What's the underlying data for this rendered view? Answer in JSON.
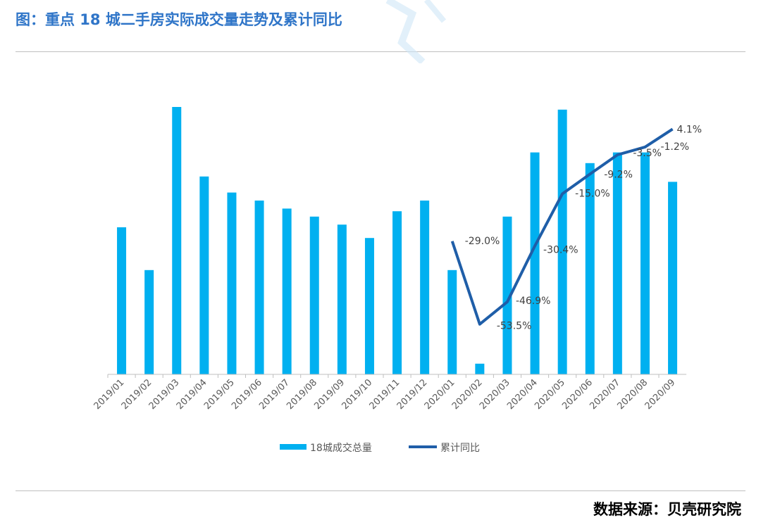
{
  "header": {
    "title": "图：重点 18 城二手房实际成交量走势及累计同比"
  },
  "footer": {
    "source": "数据来源：贝壳研究院"
  },
  "colors": {
    "bar": "#00b0f0",
    "line": "#1f5ea8",
    "title": "#2f75c8"
  },
  "chart_data": {
    "type": "bar+line",
    "categories": [
      "2019/01",
      "2019/02",
      "2019/03",
      "2019/04",
      "2019/05",
      "2019/06",
      "2019/07",
      "2019/08",
      "2019/09",
      "2019/10",
      "2019/11",
      "2019/12",
      "2020/01",
      "2020/02",
      "2020/03",
      "2020/04",
      "2020/05",
      "2020/06",
      "2020/07",
      "2020/08",
      "2020/09"
    ],
    "series": [
      {
        "name": "18城成交总量",
        "type": "bar",
        "values": [
          55,
          39,
          100,
          74,
          68,
          65,
          62,
          59,
          56,
          51,
          61,
          65,
          39,
          4,
          59,
          83,
          99,
          79,
          83,
          83,
          72
        ]
      },
      {
        "name": "累计同比",
        "type": "line",
        "values": [
          null,
          null,
          null,
          null,
          null,
          null,
          null,
          null,
          null,
          null,
          null,
          null,
          -29.0,
          -53.5,
          -46.9,
          -30.4,
          -15.0,
          -9.2,
          -3.5,
          -1.2,
          4.1
        ],
        "labels": [
          null,
          null,
          null,
          null,
          null,
          null,
          null,
          null,
          null,
          null,
          null,
          null,
          "-29.0%",
          "-53.5%",
          "-46.9%",
          "-30.4%",
          "-15.0%",
          "-9.2%",
          "-3.5%",
          "-1.2%",
          "4.1%"
        ]
      }
    ],
    "ylim_bar": [
      0,
      100
    ],
    "ylim_line": [
      -60,
      10
    ],
    "legend_position": "bottom"
  }
}
